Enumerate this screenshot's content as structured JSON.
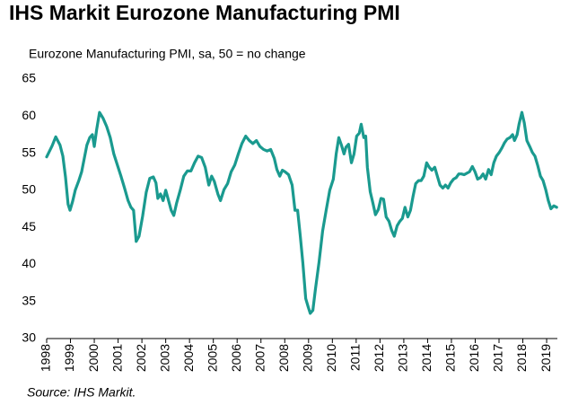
{
  "chart_data": {
    "type": "line",
    "title": "IHS Markit Eurozone Manufacturing PMI",
    "subtitle": "Eurozone Manufacturing PMI, sa, 50 = no change",
    "source": "Source: IHS Markit.",
    "xlim": [
      1998,
      2019.45
    ],
    "xticks": [
      1998,
      1999,
      2000,
      2001,
      2002,
      2003,
      2004,
      2005,
      2006,
      2007,
      2008,
      2009,
      2010,
      2011,
      2012,
      2013,
      2014,
      2015,
      2016,
      2017,
      2018,
      2019
    ],
    "ylim": [
      30,
      65
    ],
    "yticks": [
      30,
      35,
      40,
      45,
      50,
      55,
      60,
      65
    ],
    "grid": false,
    "series": [
      {
        "name": "Eurozone Manufacturing PMI",
        "color": "#1a9a8f",
        "x": [
          1998.0,
          1998.23,
          1998.38,
          1998.56,
          1998.68,
          1998.79,
          1998.9,
          1998.98,
          1999.09,
          1999.2,
          1999.35,
          1999.47,
          1999.58,
          1999.69,
          1999.81,
          1999.92,
          2000.0,
          2000.1,
          2000.22,
          2000.37,
          2000.52,
          2000.67,
          2000.82,
          2000.97,
          2001.12,
          2001.27,
          2001.42,
          2001.54,
          2001.65,
          2001.76,
          2001.88,
          2002.03,
          2002.18,
          2002.33,
          2002.48,
          2002.59,
          2002.67,
          2002.78,
          2002.89,
          2003.0,
          2003.12,
          2003.23,
          2003.34,
          2003.46,
          2003.61,
          2003.76,
          2003.91,
          2004.06,
          2004.21,
          2004.36,
          2004.51,
          2004.66,
          2004.81,
          2004.93,
          2005.04,
          2005.19,
          2005.3,
          2005.45,
          2005.6,
          2005.75,
          2005.9,
          2006.05,
          2006.2,
          2006.36,
          2006.51,
          2006.66,
          2006.81,
          2006.96,
          2007.11,
          2007.26,
          2007.41,
          2007.56,
          2007.67,
          2007.79,
          2007.9,
          2008.01,
          2008.16,
          2008.31,
          2008.43,
          2008.54,
          2008.65,
          2008.76,
          2008.88,
          2008.99,
          2009.07,
          2009.18,
          2009.29,
          2009.44,
          2009.59,
          2009.74,
          2009.89,
          2010.04,
          2010.16,
          2010.27,
          2010.38,
          2010.49,
          2010.57,
          2010.68,
          2010.8,
          2010.91,
          2011.02,
          2011.13,
          2011.21,
          2011.32,
          2011.4,
          2011.47,
          2011.59,
          2011.7,
          2011.81,
          2011.93,
          2012.04,
          2012.15,
          2012.26,
          2012.38,
          2012.49,
          2012.6,
          2012.72,
          2012.83,
          2012.94,
          2013.05,
          2013.17,
          2013.28,
          2013.39,
          2013.5,
          2013.62,
          2013.73,
          2013.84,
          2013.96,
          2014.07,
          2014.18,
          2014.3,
          2014.41,
          2014.52,
          2014.64,
          2014.75,
          2014.86,
          2014.97,
          2015.09,
          2015.2,
          2015.31,
          2015.42,
          2015.54,
          2015.65,
          2015.76,
          2015.88,
          2015.99,
          2016.1,
          2016.22,
          2016.33,
          2016.44,
          2016.56,
          2016.67,
          2016.78,
          2016.89,
          2017.01,
          2017.12,
          2017.23,
          2017.34,
          2017.46,
          2017.57,
          2017.65,
          2017.76,
          2017.84,
          2017.96,
          2018.06,
          2018.17,
          2018.29,
          2018.4,
          2018.51,
          2018.62,
          2018.74,
          2018.85,
          2018.96,
          2019.07,
          2019.18,
          2019.3,
          2019.42
        ],
        "values": [
          54.5,
          56,
          57.2,
          56.1,
          54.6,
          51.8,
          48.1,
          47.3,
          48.5,
          50,
          51.3,
          52.5,
          54.3,
          56.1,
          57.1,
          57.5,
          55.9,
          58.2,
          60.5,
          59.7,
          58.6,
          57.1,
          54.9,
          53.4,
          51.9,
          50.3,
          48.6,
          47.7,
          47.3,
          43.1,
          43.8,
          46.5,
          49.7,
          51.6,
          51.8,
          51,
          48.9,
          49.5,
          48.6,
          50,
          48.6,
          47.3,
          46.6,
          48.3,
          50,
          51.9,
          52.6,
          52.6,
          53.7,
          54.6,
          54.4,
          53.1,
          50.7,
          51.9,
          51.2,
          49.5,
          48.6,
          50.1,
          50.9,
          52.5,
          53.4,
          54.9,
          56.3,
          57.3,
          56.7,
          56.3,
          56.7,
          55.9,
          55.5,
          55.3,
          55.5,
          54.3,
          52.8,
          51.9,
          52.7,
          52.5,
          52.1,
          50.7,
          47.3,
          47.3,
          43.9,
          40.2,
          35.4,
          34.2,
          33.4,
          33.8,
          36.7,
          40.3,
          44.5,
          47.3,
          50,
          51.5,
          54.9,
          57.1,
          56.1,
          54.9,
          55.8,
          56.2,
          53.7,
          54.9,
          57.3,
          57.7,
          58.9,
          57.1,
          57.3,
          53.1,
          49.8,
          48.3,
          46.7,
          47.4,
          48.9,
          48.8,
          46.4,
          45.8,
          44.6,
          43.8,
          45.2,
          45.8,
          46.2,
          47.7,
          46.4,
          47.3,
          49.2,
          50.9,
          51.3,
          51.3,
          51.9,
          53.7,
          53.1,
          52.7,
          53.1,
          51.9,
          50.7,
          50.3,
          50.7,
          50.3,
          51,
          51.5,
          51.7,
          52.2,
          52.2,
          52.1,
          52.3,
          52.5,
          53.2,
          52.5,
          51.5,
          51.7,
          52.2,
          51.5,
          52.8,
          52.1,
          53.7,
          54.6,
          55.1,
          55.7,
          56.4,
          56.9,
          57.1,
          57.5,
          56.7,
          57.5,
          58.9,
          60.5,
          59.1,
          56.7,
          55.9,
          55.1,
          54.6,
          53.4,
          51.9,
          51.3,
          50.1,
          48.6,
          47.5,
          47.9,
          47.7
        ]
      }
    ]
  }
}
